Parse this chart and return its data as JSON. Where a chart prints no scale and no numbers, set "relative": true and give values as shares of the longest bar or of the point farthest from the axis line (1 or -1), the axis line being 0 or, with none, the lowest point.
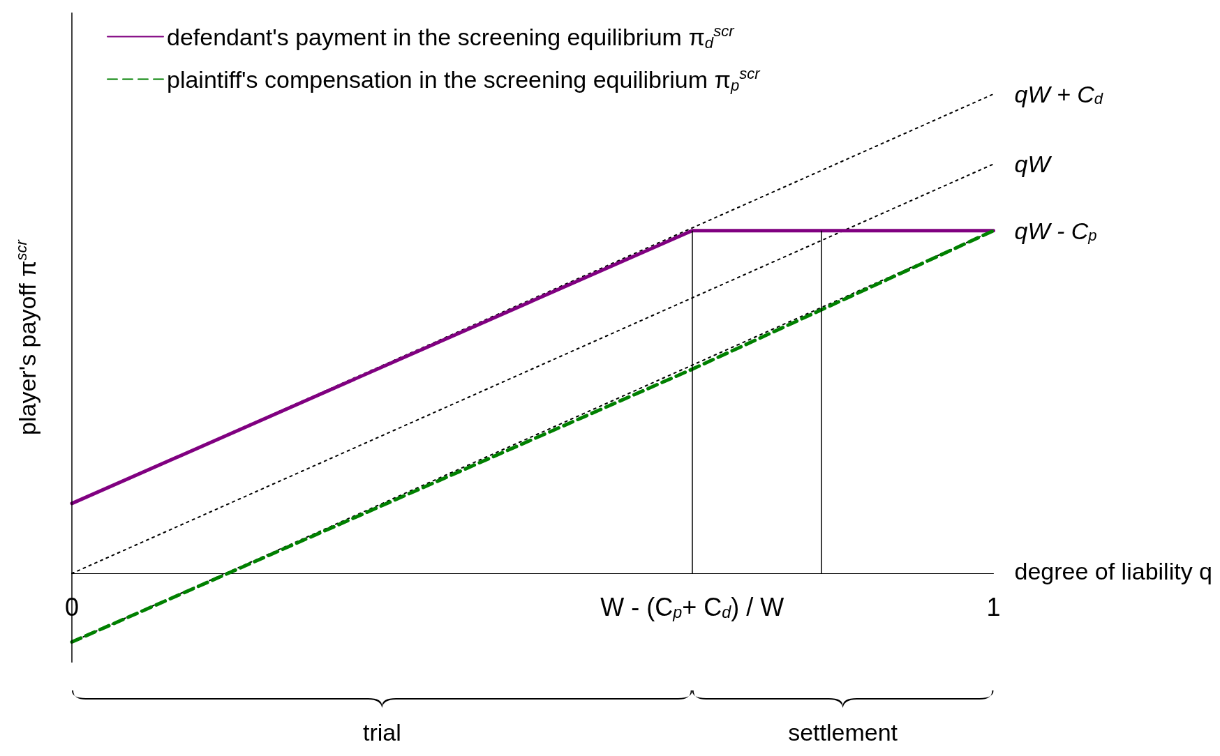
{
  "chart_data": {
    "type": "line",
    "relative": true,
    "xlabel": "degree of liability q",
    "ylabel": "player's payoff π$^{scr}$",
    "xlim": [
      0,
      1
    ],
    "xticks": [
      0,
      {
        "value": 0.673,
        "label": "W - (C$_{p}$+ C$_{d}$) / W"
      },
      1
    ],
    "legend": "top left",
    "marker": "none",
    "grid": false,
    "series": [
      {
        "name": "defendant's payment in the screening equilibrium π$_{d}$$^{scr}$",
        "color": "#800080",
        "line_style": "solid",
        "x": [
          0,
          0.673,
          1
        ],
        "values": [
          0.146,
          0.715,
          0.715
        ]
      },
      {
        "name": "plaintiff's compensation in the screening equilibrium π$_{p}$$^{scr}$",
        "color": "#008000",
        "line_style": "dashed",
        "x": [
          0,
          0.673,
          1
        ],
        "values": [
          -0.143,
          0.426,
          0.715
        ]
      },
      {
        "name": "qW + C$_{d}$",
        "color": "#000000",
        "line_style": "dotted",
        "x": [
          0,
          1
        ],
        "values": [
          0.146,
          1
        ]
      },
      {
        "name": "qW",
        "color": "#000000",
        "line_style": "dotted",
        "x": [
          0,
          1
        ],
        "values": [
          0,
          0.854
        ]
      },
      {
        "name": "qW - C$_{p}$",
        "color": "#000000",
        "line_style": "dotted",
        "x": [
          0,
          1
        ],
        "values": [
          -0.143,
          0.715
        ]
      }
    ],
    "ref_lines": [
      {
        "axis": "x",
        "value": 0.673,
        "color": "#000000"
      },
      {
        "axis": "x",
        "value": 0.813,
        "color": "#000000"
      }
    ],
    "annotations": [
      "trial",
      "settlement"
    ]
  }
}
